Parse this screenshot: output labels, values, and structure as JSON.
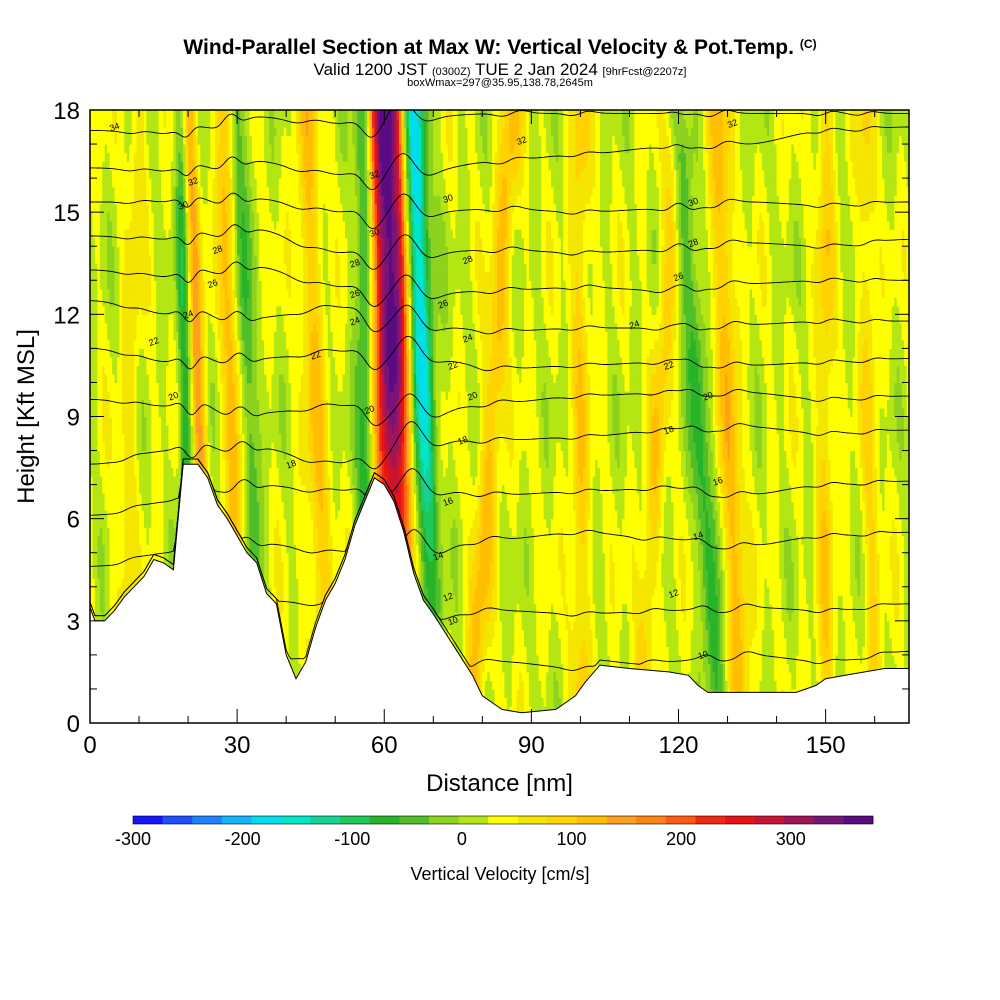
{
  "header": {
    "title": "Wind-Parallel Section at Max W: Vertical Velocity & Pot.Temp.",
    "title_mark": "(C)",
    "valid_prefix": "Valid 1200 JST",
    "valid_utc": "(0300Z)",
    "valid_date": "TUE 2 Jan 2024",
    "forecast": "[9hrFcst@2207z]",
    "box_info": "boxWmax=297@35.95,138.78,2645m"
  },
  "chart_data": {
    "type": "heatmap",
    "xlabel": "Distance [nm]",
    "ylabel": "Height [Kft MSL]",
    "xlim": [
      0,
      167
    ],
    "ylim": [
      0,
      18
    ],
    "x_ticks": [
      "0",
      "30",
      "60",
      "90",
      "120",
      "150"
    ],
    "y_ticks": [
      "0",
      "3",
      "6",
      "9",
      "12",
      "15",
      "18"
    ],
    "colorbar": {
      "title": "Vertical Velocity [cm/s]",
      "range": [
        -300,
        375
      ],
      "step": 25,
      "tick_values": [
        -300,
        -200,
        -100,
        0,
        100,
        200,
        300
      ],
      "tick_labels": [
        "-300",
        "-200",
        "-100",
        "0",
        "100",
        "200",
        "300"
      ],
      "colors": [
        "#1414ff",
        "#1e50ff",
        "#1e82ff",
        "#14b4ff",
        "#00dcf0",
        "#00e6c8",
        "#14d296",
        "#1ec85a",
        "#28b428",
        "#50be28",
        "#8cd21e",
        "#b4e614",
        "#ffff00",
        "#f5e600",
        "#ffd200",
        "#ffbe00",
        "#ffa01e",
        "#ff8214",
        "#ff5a14",
        "#f02814",
        "#e61414",
        "#c81432",
        "#a0145a",
        "#781478",
        "#5a0a82"
      ]
    },
    "terrain_kft": [
      [
        0,
        3.4
      ],
      [
        1,
        3.0
      ],
      [
        3,
        3.0
      ],
      [
        5,
        3.3
      ],
      [
        7,
        3.7
      ],
      [
        9,
        4.0
      ],
      [
        11,
        4.3
      ],
      [
        13,
        4.8
      ],
      [
        15,
        4.7
      ],
      [
        17,
        4.5
      ],
      [
        19,
        7.6
      ],
      [
        22,
        7.6
      ],
      [
        24,
        7.2
      ],
      [
        26,
        6.4
      ],
      [
        28,
        6.0
      ],
      [
        30,
        5.5
      ],
      [
        32,
        5.0
      ],
      [
        34,
        4.7
      ],
      [
        36,
        3.8
      ],
      [
        38,
        3.5
      ],
      [
        40,
        2.0
      ],
      [
        42,
        1.3
      ],
      [
        44,
        1.8
      ],
      [
        46,
        2.8
      ],
      [
        48,
        3.6
      ],
      [
        50,
        4.1
      ],
      [
        52,
        4.8
      ],
      [
        54,
        5.8
      ],
      [
        56,
        6.5
      ],
      [
        58,
        7.2
      ],
      [
        60,
        7.0
      ],
      [
        62,
        6.5
      ],
      [
        64,
        5.6
      ],
      [
        66,
        4.4
      ],
      [
        68,
        3.6
      ],
      [
        70,
        3.2
      ],
      [
        74,
        2.3
      ],
      [
        78,
        1.4
      ],
      [
        80,
        0.8
      ],
      [
        82,
        0.6
      ],
      [
        84,
        0.4
      ],
      [
        88,
        0.3
      ],
      [
        95,
        0.4
      ],
      [
        99,
        0.8
      ],
      [
        101,
        1.2
      ],
      [
        104,
        1.7
      ],
      [
        110,
        1.6
      ],
      [
        118,
        1.5
      ],
      [
        122,
        1.4
      ],
      [
        124,
        1.1
      ],
      [
        126,
        0.9
      ],
      [
        130,
        0.9
      ],
      [
        136,
        0.9
      ],
      [
        144,
        0.9
      ],
      [
        148,
        1.1
      ],
      [
        150,
        1.3
      ],
      [
        154,
        1.4
      ],
      [
        158,
        1.5
      ],
      [
        162,
        1.6
      ],
      [
        167,
        1.6
      ]
    ],
    "w_features": [
      {
        "x0": 65,
        "x18": 62,
        "w": 3.5,
        "a": 360
      },
      {
        "x0": 69,
        "x18": 65,
        "w": 3.0,
        "a": -290
      },
      {
        "x0": 60,
        "x18": 58,
        "w": 2.5,
        "a": 140
      },
      {
        "x0": 57,
        "x18": 56,
        "w": 2.0,
        "a": -130
      },
      {
        "x0": 24,
        "x18": 20,
        "w": 1.6,
        "a": 120
      },
      {
        "x0": 20,
        "x18": 19,
        "w": 1.5,
        "a": -100
      },
      {
        "x0": 31,
        "x18": 27,
        "w": 1.6,
        "a": 90
      },
      {
        "x0": 35,
        "x18": 30,
        "w": 1.5,
        "a": -80
      },
      {
        "x0": 48,
        "x18": 44,
        "w": 2.5,
        "a": 70
      },
      {
        "x0": 78,
        "x18": 86,
        "w": 2.2,
        "a": 80
      },
      {
        "x0": 100,
        "x18": 100,
        "w": 2.0,
        "a": 60
      },
      {
        "x0": 112,
        "x18": 120,
        "w": 2.0,
        "a": 60
      },
      {
        "x0": 128,
        "x18": 120,
        "w": 1.8,
        "a": -90
      },
      {
        "x0": 133,
        "x18": 128,
        "w": 2.0,
        "a": 90
      },
      {
        "x0": 150,
        "x18": 150,
        "w": 1.8,
        "a": 60
      },
      {
        "x0": 160,
        "x18": 158,
        "w": 1.8,
        "a": 50
      },
      {
        "x0": 6,
        "x18": 10,
        "w": 2.0,
        "a": 40
      }
    ],
    "theta_contours": [
      {
        "value": 10,
        "label": "10",
        "levels": [
          1.8,
          2.2,
          1.8,
          2.0,
          1.5,
          1.8,
          1.6,
          1.8,
          2.0,
          1.8,
          2.1
        ]
      },
      {
        "value": 12,
        "label": "12",
        "levels": [
          3.0,
          3.3,
          3.6,
          3.5,
          3.2,
          3.3,
          3.2,
          3.3,
          3.4,
          3.3,
          3.5
        ]
      },
      {
        "value": 14,
        "label": "14",
        "levels": [
          4.6,
          5.0,
          5.3,
          5.0,
          5.1,
          5.4,
          5.6,
          5.4,
          5.2,
          5.5,
          5.6
        ]
      },
      {
        "value": 16,
        "label": "16",
        "levels": [
          6.1,
          6.5,
          7.0,
          6.8,
          6.9,
          6.7,
          6.8,
          6.9,
          6.7,
          7.0,
          7.1
        ]
      },
      {
        "value": 18,
        "label": "18",
        "levels": [
          7.6,
          8.0,
          8.1,
          7.6,
          8.3,
          8.3,
          8.4,
          8.6,
          8.7,
          8.5,
          8.6
        ]
      },
      {
        "value": 20,
        "label": "20",
        "levels": [
          9.5,
          9.3,
          9.1,
          9.3,
          9.1,
          9.4,
          9.6,
          9.7,
          9.7,
          9.5,
          9.6
        ]
      },
      {
        "value": 22,
        "label": "22",
        "levels": [
          11.0,
          10.6,
          10.7,
          10.9,
          10.8,
          10.4,
          10.5,
          10.6,
          10.5,
          10.6,
          10.7
        ]
      },
      {
        "value": 24,
        "label": "24",
        "levels": [
          12.4,
          12.0,
          11.9,
          12.2,
          11.7,
          11.5,
          11.6,
          11.6,
          11.7,
          11.8,
          11.8
        ]
      },
      {
        "value": 26,
        "label": "26",
        "levels": [
          13.3,
          13.1,
          13.4,
          12.8,
          12.6,
          12.7,
          12.8,
          12.7,
          12.9,
          13.0,
          13.0
        ]
      },
      {
        "value": 28,
        "label": "28",
        "levels": [
          14.3,
          14.2,
          14.5,
          13.8,
          13.8,
          13.9,
          13.8,
          13.9,
          14.1,
          14.0,
          14.2
        ]
      },
      {
        "value": 30,
        "label": "30",
        "levels": [
          15.3,
          15.3,
          15.4,
          15.0,
          15.0,
          15.1,
          15.0,
          15.1,
          15.3,
          15.2,
          15.3
        ]
      },
      {
        "value": 32,
        "label": "32",
        "levels": [
          16.3,
          16.2,
          16.5,
          16.1,
          16.2,
          16.5,
          16.7,
          16.9,
          17.0,
          17.4,
          17.5
        ]
      },
      {
        "value": 34,
        "label": "34",
        "levels": [
          17.4,
          17.3,
          17.8,
          17.6,
          17.8,
          17.9,
          17.9,
          17.9,
          17.9,
          17.9,
          17.9
        ]
      }
    ],
    "theta_label_positions": [
      {
        "label": "34",
        "x": 5,
        "y": 17.5
      },
      {
        "label": "32",
        "x": 21,
        "y": 15.9
      },
      {
        "label": "30",
        "x": 19,
        "y": 15.2
      },
      {
        "label": "28",
        "x": 26,
        "y": 13.9
      },
      {
        "label": "26",
        "x": 25,
        "y": 12.9
      },
      {
        "label": "24",
        "x": 20,
        "y": 12.0
      },
      {
        "label": "22",
        "x": 13,
        "y": 11.2
      },
      {
        "label": "20",
        "x": 17,
        "y": 9.6
      },
      {
        "label": "18",
        "x": 41,
        "y": 7.6
      },
      {
        "label": "22",
        "x": 46,
        "y": 10.8
      },
      {
        "label": "32",
        "x": 58,
        "y": 16.1
      },
      {
        "label": "30",
        "x": 58,
        "y": 14.4
      },
      {
        "label": "28",
        "x": 54,
        "y": 13.5
      },
      {
        "label": "26",
        "x": 54,
        "y": 12.6
      },
      {
        "label": "24",
        "x": 54,
        "y": 11.8
      },
      {
        "label": "20",
        "x": 57,
        "y": 9.2
      },
      {
        "label": "30",
        "x": 73,
        "y": 15.4
      },
      {
        "label": "28",
        "x": 77,
        "y": 13.6
      },
      {
        "label": "26",
        "x": 72,
        "y": 12.3
      },
      {
        "label": "24",
        "x": 77,
        "y": 11.3
      },
      {
        "label": "22",
        "x": 74,
        "y": 10.5
      },
      {
        "label": "20",
        "x": 78,
        "y": 9.6
      },
      {
        "label": "18",
        "x": 76,
        "y": 8.3
      },
      {
        "label": "16",
        "x": 73,
        "y": 6.5
      },
      {
        "label": "14",
        "x": 71,
        "y": 4.9
      },
      {
        "label": "12",
        "x": 73,
        "y": 3.7
      },
      {
        "label": "10",
        "x": 74,
        "y": 3.0
      },
      {
        "label": "32",
        "x": 88,
        "y": 17.1
      },
      {
        "label": "32",
        "x": 131,
        "y": 17.6
      },
      {
        "label": "30",
        "x": 123,
        "y": 15.3
      },
      {
        "label": "28",
        "x": 123,
        "y": 14.1
      },
      {
        "label": "26",
        "x": 120,
        "y": 13.1
      },
      {
        "label": "24",
        "x": 111,
        "y": 11.7
      },
      {
        "label": "22",
        "x": 118,
        "y": 10.5
      },
      {
        "label": "20",
        "x": 126,
        "y": 9.6
      },
      {
        "label": "18",
        "x": 118,
        "y": 8.6
      },
      {
        "label": "16",
        "x": 128,
        "y": 7.1
      },
      {
        "label": "14",
        "x": 124,
        "y": 5.5
      },
      {
        "label": "12",
        "x": 119,
        "y": 3.8
      },
      {
        "label": "10",
        "x": 125,
        "y": 2.0
      }
    ]
  }
}
